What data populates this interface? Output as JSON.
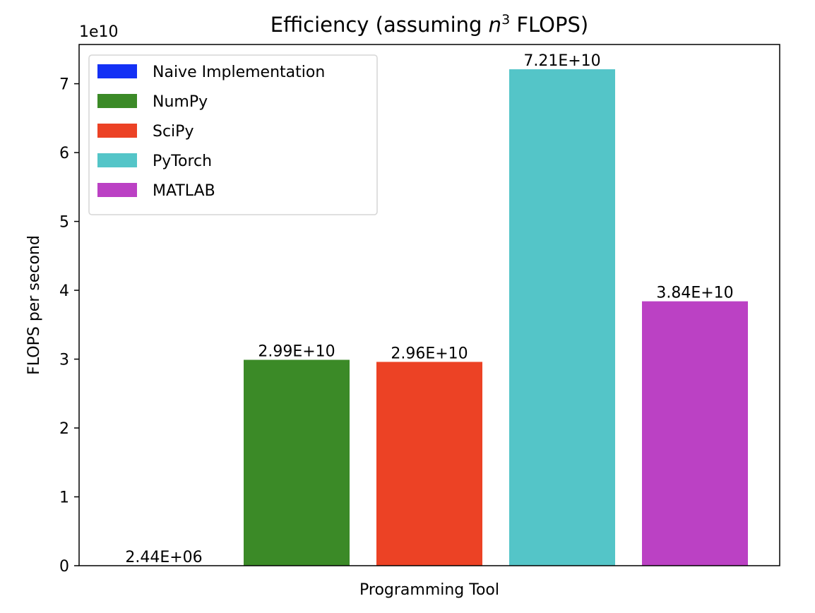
{
  "chart_data": {
    "type": "bar",
    "title": "Efficiency (assuming n³ FLOPS)",
    "title_parts": {
      "before": "Efficiency (assuming ",
      "var": "n",
      "sup": "3",
      "after": " FLOPS)"
    },
    "xlabel": "Programming Tool",
    "ylabel": "FLOPS per second",
    "y_offset_label": "1e10",
    "ylim": [
      0,
      75700000000.0
    ],
    "y_ticks": [
      0,
      10000000000.0,
      20000000000.0,
      30000000000.0,
      40000000000.0,
      50000000000.0,
      60000000000.0,
      70000000000.0
    ],
    "y_tick_labels": [
      "0",
      "1",
      "2",
      "3",
      "4",
      "5",
      "6",
      "7"
    ],
    "grid": false,
    "legend_placement": "top-left",
    "categories": [
      "Naive Implementation",
      "NumPy",
      "SciPy",
      "PyTorch",
      "MATLAB"
    ],
    "values": [
      2440000.0,
      29900000000.0,
      29600000000.0,
      72100000000.0,
      38400000000.0
    ],
    "value_labels": [
      "2.44E+06",
      "2.99E+10",
      "2.96E+10",
      "7.21E+10",
      "3.84E+10"
    ],
    "colors": [
      "#1431f5",
      "#3b8a27",
      "#ec4225",
      "#54c5c8",
      "#bb41c4"
    ]
  }
}
